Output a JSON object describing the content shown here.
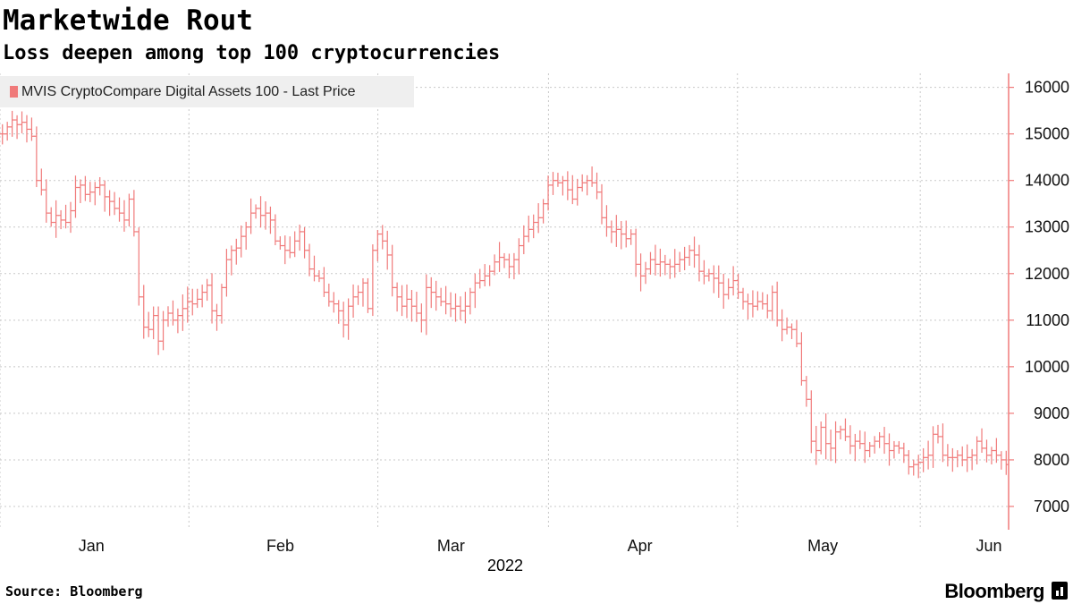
{
  "header": {
    "title": "Marketwide Rout",
    "subtitle": "Loss deepen among top 100 cryptocurrencies"
  },
  "footer": {
    "source": "Source: Bloomberg",
    "brand": "Bloomberg"
  },
  "colors": {
    "series": "#f07a7a",
    "grid": "#c8c8c8",
    "axis": "#f07a7a"
  },
  "chart_data": {
    "type": "line",
    "style": "OHLC bars, daily",
    "title": "Marketwide Rout",
    "subtitle": "Loss deepen among top 100 cryptocurrencies",
    "xlabel": "2022",
    "ylabel": "",
    "x_start": "2021-12-20",
    "x_end": "2022-06-03",
    "xlim_days": [
      0,
      165.5
    ],
    "ylim": [
      6500,
      16300
    ],
    "y_ticks": [
      7000,
      8000,
      9000,
      10000,
      11000,
      12000,
      13000,
      14000,
      15000,
      16000
    ],
    "x_ticks": [
      {
        "label": "Jan",
        "day": 15
      },
      {
        "label": "Feb",
        "day": 46
      },
      {
        "label": "Mar",
        "day": 74
      },
      {
        "label": "Apr",
        "day": 105
      },
      {
        "label": "May",
        "day": 135
      },
      {
        "label": "Jun",
        "day": 166
      }
    ],
    "x_gridlines_days": [
      0,
      31,
      62,
      90,
      121,
      151
    ],
    "legend": {
      "entry": "MVIS CryptoCompare Digital Assets 100 - Last Price",
      "position": "top-left"
    },
    "grid": true,
    "series": [
      {
        "name": "MVIS CryptoCompare Digital Assets 100 - Last Price",
        "closes": [
          15000,
          15150,
          15300,
          15200,
          15250,
          15100,
          14950,
          14000,
          13800,
          13300,
          13100,
          13250,
          13150,
          13100,
          13350,
          13850,
          13900,
          13700,
          13750,
          13850,
          13900,
          13650,
          13550,
          13400,
          13300,
          13150,
          13600,
          12900,
          11500,
          10850,
          10800,
          11100,
          10550,
          11000,
          11150,
          11000,
          11100,
          11250,
          11400,
          11350,
          11450,
          11600,
          11750,
          11200,
          11100,
          11700,
          12300,
          12500,
          12550,
          12800,
          13000,
          13300,
          13400,
          13250,
          13300,
          13150,
          12700,
          12600,
          12500,
          12450,
          12700,
          12900,
          12500,
          12100,
          11950,
          11900,
          11600,
          11400,
          11350,
          11200,
          10900,
          11300,
          11500,
          11600,
          11800,
          11250,
          12500,
          12850,
          12700,
          12400,
          11700,
          11500,
          11300,
          11450,
          11300,
          11150,
          11000,
          11700,
          11600,
          11500,
          11400,
          11350,
          11250,
          11300,
          11200,
          11300,
          11600,
          11800,
          11850,
          11950,
          12050,
          12250,
          12350,
          12300,
          12150,
          12300,
          12600,
          12800,
          12950,
          13100,
          13200,
          13500,
          13900,
          14000,
          13950,
          14000,
          13800,
          13600,
          13850,
          13950,
          14000,
          13950,
          13750,
          13200,
          13000,
          12900,
          12950,
          12850,
          12750,
          12850,
          12200,
          11950,
          12100,
          12300,
          12200,
          12250,
          12200,
          12150,
          12200,
          12300,
          12350,
          12500,
          12400,
          12050,
          11950,
          12000,
          11900,
          11800,
          11550,
          11700,
          11850,
          11600,
          11400,
          11350,
          11300,
          11400,
          11350,
          11200,
          11600,
          11000,
          10800,
          10850,
          10800,
          10500,
          9700,
          9300,
          8400,
          8200,
          8700,
          8350,
          8250,
          8600,
          8650,
          8500,
          8300,
          8400,
          8350,
          8200,
          8300,
          8400,
          8500,
          8350,
          8200,
          8300,
          8250,
          8100,
          7850,
          7900,
          7950,
          8050,
          8100,
          8550,
          8500,
          8100,
          8050,
          8050,
          8100,
          8000,
          8050,
          8100,
          8400,
          8250,
          8100,
          8200,
          8100,
          8000,
          7900
        ]
      }
    ]
  }
}
